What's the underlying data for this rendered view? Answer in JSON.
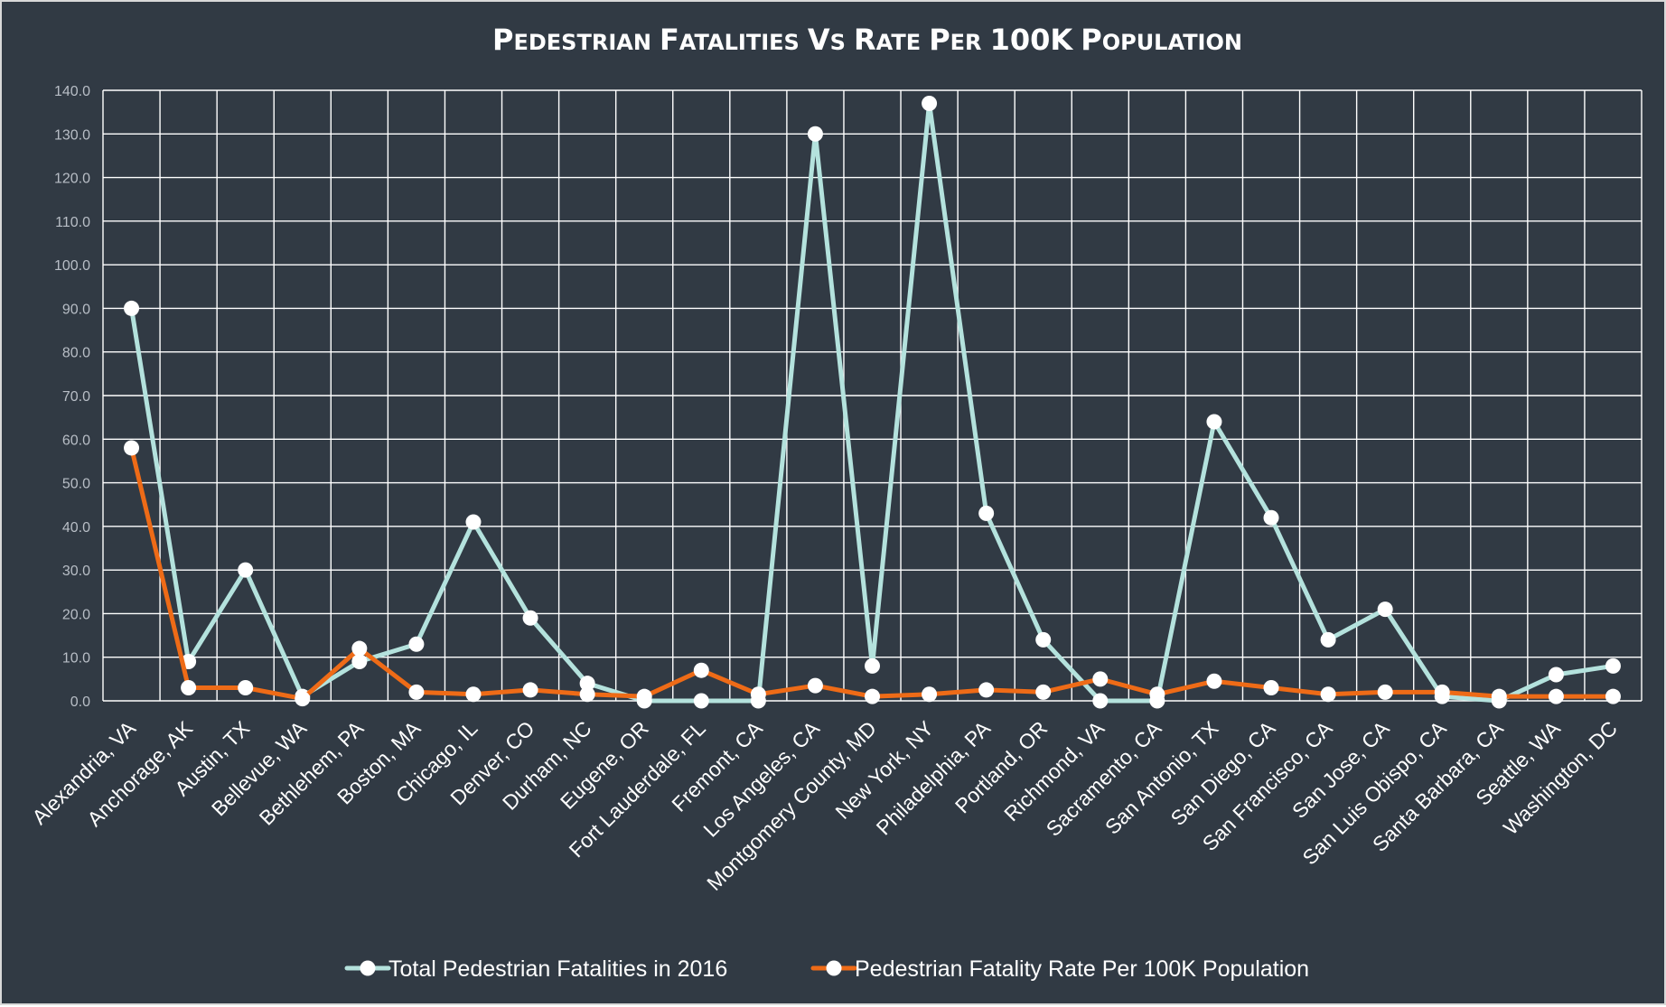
{
  "chart_data": {
    "type": "line",
    "title": "Pedestrian Fatalities Vs Rate Per 100K Population",
    "xlabel": "",
    "ylabel": "",
    "ylim": [
      0,
      140
    ],
    "ytick_step": 10,
    "ytick_format": "0.0",
    "grid": true,
    "legend_position": "bottom",
    "categories": [
      "Alexandria, VA",
      "Anchorage, AK",
      "Austin, TX",
      "Bellevue, WA",
      "Bethlehem, PA",
      "Boston, MA",
      "Chicago, IL",
      "Denver, CO",
      "Durham, NC",
      "Eugene, OR",
      "Fort Lauderdale, FL",
      "Fremont, CA",
      "Los Angeles, CA",
      "Montgomery County, MD",
      "New York, NY",
      "Philadelphia, PA",
      "Portland, OR",
      "Richmond, VA",
      "Sacramento, CA",
      "San Antonio, TX",
      "San Diego, CA",
      "San Francisco, CA",
      "San Jose, CA",
      "San Luis Obispo, CA",
      "Santa Barbara, CA",
      "Seattle, WA",
      "Washington, DC"
    ],
    "series": [
      {
        "name": "Total Pedestrian Fatalities in 2016",
        "color": "#b4e2dd",
        "values": [
          90,
          9,
          30,
          1,
          9,
          13,
          41,
          19,
          4,
          0,
          0,
          0,
          130,
          8,
          137,
          43,
          14,
          0,
          0,
          64,
          42,
          14,
          21,
          1,
          0,
          6,
          8
        ]
      },
      {
        "name": "Pedestrian Fatality Rate Per 100K Population",
        "color": "#ee6b17",
        "values": [
          58,
          3,
          3,
          0.5,
          12,
          2,
          1.5,
          2.5,
          1.5,
          1,
          7,
          1.5,
          3.5,
          1,
          1.5,
          2.5,
          2,
          5,
          1.5,
          4.5,
          3,
          1.5,
          2,
          2,
          1,
          1,
          1
        ]
      }
    ]
  }
}
